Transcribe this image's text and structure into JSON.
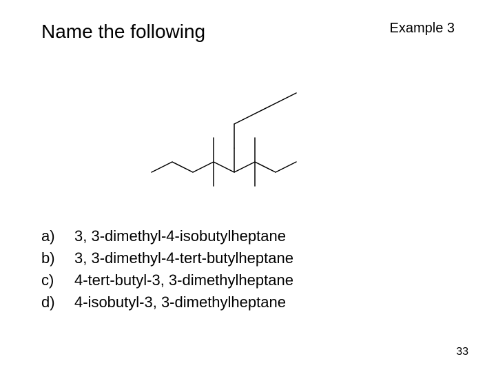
{
  "title": "Name the following",
  "example_label": "Example 3",
  "page_number": "33",
  "options": [
    {
      "letter": "a)",
      "text": "3, 3-dimethyl-4-isobutylheptane"
    },
    {
      "letter": "b)",
      "text": "3, 3-dimethyl-4-tert-butylheptane"
    },
    {
      "letter": "c)",
      "text": "4-tert-butyl-3, 3-dimethylheptane"
    },
    {
      "letter": "d)",
      "text": "4-isobutyl-3, 3-dimethylheptane"
    }
  ],
  "structure": {
    "stroke_color": "#000000",
    "stroke_width": 1.5,
    "segments": [
      [
        10,
        170,
        40,
        155
      ],
      [
        40,
        155,
        70,
        170
      ],
      [
        70,
        170,
        100,
        155
      ],
      [
        100,
        155,
        130,
        170
      ],
      [
        130,
        170,
        160,
        155
      ],
      [
        160,
        155,
        190,
        170
      ],
      [
        190,
        170,
        220,
        155
      ],
      [
        100,
        155,
        100,
        120
      ],
      [
        100,
        155,
        100,
        190
      ],
      [
        160,
        155,
        160,
        120
      ],
      [
        160,
        155,
        160,
        190
      ],
      [
        130,
        170,
        130,
        135
      ],
      [
        130,
        135,
        130,
        100
      ],
      [
        130,
        100,
        160,
        85
      ],
      [
        160,
        85,
        190,
        70
      ],
      [
        190,
        70,
        220,
        55
      ]
    ]
  }
}
